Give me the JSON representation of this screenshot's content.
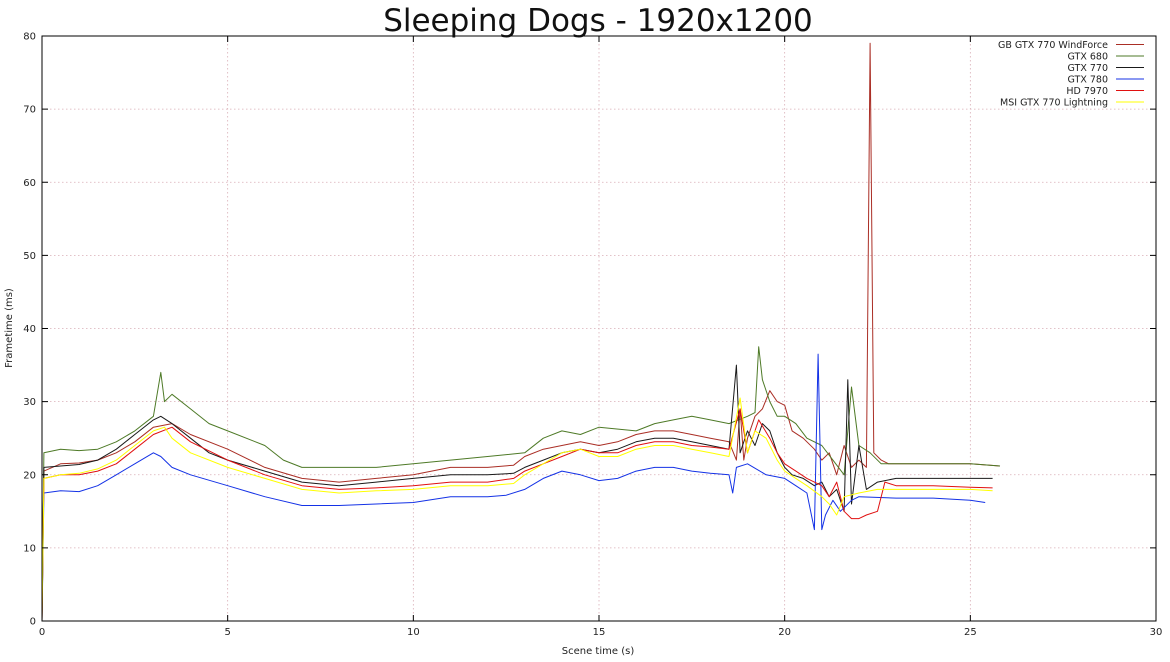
{
  "chart_data": {
    "type": "line",
    "title": "Sleeping Dogs - 1920x1200",
    "xlabel": "Scene time (s)",
    "ylabel": "Frametime (ms)",
    "xlim": [
      0,
      30
    ],
    "ylim": [
      0,
      80
    ],
    "x_ticks": [
      0,
      5,
      10,
      15,
      20,
      25,
      30
    ],
    "y_ticks": [
      0,
      10,
      20,
      30,
      40,
      50,
      60,
      70,
      80
    ],
    "grid": true,
    "legend_position": "top-right",
    "series": [
      {
        "name": "GB GTX 770 WindForce",
        "color": "#aa2e25",
        "points": [
          [
            0,
            0
          ],
          [
            0.05,
            20.5
          ],
          [
            0.5,
            21.5
          ],
          [
            1,
            21.6
          ],
          [
            1.5,
            22
          ],
          [
            2,
            23
          ],
          [
            2.5,
            24.5
          ],
          [
            3,
            26.5
          ],
          [
            3.5,
            27
          ],
          [
            4,
            25.5
          ],
          [
            5,
            23.5
          ],
          [
            6,
            21
          ],
          [
            7,
            19.5
          ],
          [
            8,
            19
          ],
          [
            9,
            19.5
          ],
          [
            10,
            20
          ],
          [
            11,
            21
          ],
          [
            12,
            21
          ],
          [
            12.7,
            21.3
          ],
          [
            13,
            22.5
          ],
          [
            13.5,
            23.5
          ],
          [
            14,
            24
          ],
          [
            14.5,
            24.5
          ],
          [
            15,
            24
          ],
          [
            15.5,
            24.5
          ],
          [
            16,
            25.5
          ],
          [
            16.5,
            26
          ],
          [
            17,
            26
          ],
          [
            17.5,
            25.5
          ],
          [
            18,
            25
          ],
          [
            18.5,
            24.5
          ],
          [
            18.7,
            22
          ],
          [
            18.8,
            29
          ],
          [
            18.9,
            22
          ],
          [
            19,
            25
          ],
          [
            19.2,
            28
          ],
          [
            19.4,
            29
          ],
          [
            19.6,
            31.5
          ],
          [
            19.8,
            30
          ],
          [
            20,
            29.5
          ],
          [
            20.2,
            26
          ],
          [
            20.5,
            25
          ],
          [
            20.8,
            23.5
          ],
          [
            21,
            22
          ],
          [
            21.2,
            23
          ],
          [
            21.4,
            20
          ],
          [
            21.6,
            24
          ],
          [
            21.8,
            21
          ],
          [
            22,
            22
          ],
          [
            22.2,
            21
          ],
          [
            22.3,
            79
          ],
          [
            22.4,
            23
          ],
          [
            22.6,
            22
          ],
          [
            22.8,
            21.5
          ],
          [
            23,
            21.5
          ],
          [
            24,
            21.5
          ],
          [
            25,
            21.5
          ],
          [
            25.8,
            21.2
          ]
        ]
      },
      {
        "name": "GTX 680",
        "color": "#4e7a27",
        "points": [
          [
            0,
            1
          ],
          [
            0.05,
            23
          ],
          [
            0.5,
            23.5
          ],
          [
            1,
            23.3
          ],
          [
            1.5,
            23.5
          ],
          [
            2,
            24.5
          ],
          [
            2.5,
            26
          ],
          [
            3,
            28
          ],
          [
            3.2,
            34
          ],
          [
            3.3,
            30
          ],
          [
            3.5,
            31
          ],
          [
            4,
            29
          ],
          [
            4.5,
            27
          ],
          [
            5,
            26
          ],
          [
            6,
            24
          ],
          [
            6.5,
            22
          ],
          [
            7,
            21
          ],
          [
            8,
            21
          ],
          [
            9,
            21
          ],
          [
            10,
            21.5
          ],
          [
            11,
            22
          ],
          [
            12,
            22.5
          ],
          [
            13,
            23
          ],
          [
            13.5,
            25
          ],
          [
            14,
            26
          ],
          [
            14.5,
            25.5
          ],
          [
            15,
            26.5
          ],
          [
            16,
            26
          ],
          [
            16.5,
            27
          ],
          [
            17,
            27.5
          ],
          [
            17.5,
            28
          ],
          [
            18,
            27.5
          ],
          [
            18.5,
            27
          ],
          [
            19,
            28
          ],
          [
            19.2,
            28.5
          ],
          [
            19.3,
            37.5
          ],
          [
            19.4,
            33
          ],
          [
            19.6,
            30
          ],
          [
            19.8,
            28
          ],
          [
            20,
            28
          ],
          [
            20.3,
            27
          ],
          [
            20.6,
            25
          ],
          [
            21,
            24
          ],
          [
            21.3,
            22
          ],
          [
            21.6,
            20
          ],
          [
            21.8,
            32
          ],
          [
            22,
            24
          ],
          [
            22.3,
            23
          ],
          [
            22.6,
            21.5
          ],
          [
            23,
            21.5
          ],
          [
            24,
            21.5
          ],
          [
            25,
            21.5
          ],
          [
            25.8,
            21.2
          ]
        ]
      },
      {
        "name": "GTX 770",
        "color": "#1a1a1a",
        "points": [
          [
            0,
            0
          ],
          [
            0.05,
            21
          ],
          [
            0.5,
            21.2
          ],
          [
            1,
            21.4
          ],
          [
            1.5,
            22
          ],
          [
            2,
            23.5
          ],
          [
            2.5,
            25.5
          ],
          [
            3,
            27.5
          ],
          [
            3.2,
            28
          ],
          [
            3.5,
            27
          ],
          [
            4,
            25
          ],
          [
            4.5,
            23
          ],
          [
            5,
            22
          ],
          [
            6,
            20.5
          ],
          [
            7,
            19
          ],
          [
            8,
            18.5
          ],
          [
            9,
            19
          ],
          [
            10,
            19.5
          ],
          [
            11,
            20
          ],
          [
            12,
            20
          ],
          [
            12.7,
            20.2
          ],
          [
            13,
            21
          ],
          [
            13.5,
            22
          ],
          [
            14,
            23
          ],
          [
            14.5,
            23.5
          ],
          [
            15,
            23
          ],
          [
            15.5,
            23.5
          ],
          [
            16,
            24.5
          ],
          [
            16.5,
            25
          ],
          [
            17,
            25
          ],
          [
            17.5,
            24.5
          ],
          [
            18,
            24
          ],
          [
            18.5,
            23.5
          ],
          [
            18.7,
            35
          ],
          [
            18.8,
            23
          ],
          [
            19,
            26
          ],
          [
            19.2,
            24
          ],
          [
            19.4,
            27
          ],
          [
            19.6,
            26
          ],
          [
            19.8,
            23
          ],
          [
            20,
            21
          ],
          [
            20.2,
            20
          ],
          [
            20.5,
            19.5
          ],
          [
            20.8,
            18.5
          ],
          [
            21,
            19
          ],
          [
            21.2,
            17
          ],
          [
            21.4,
            18
          ],
          [
            21.6,
            15
          ],
          [
            21.7,
            33
          ],
          [
            21.8,
            16
          ],
          [
            22,
            24
          ],
          [
            22.2,
            18
          ],
          [
            22.5,
            19
          ],
          [
            23,
            19.5
          ],
          [
            24,
            19.5
          ],
          [
            25,
            19.5
          ],
          [
            25.6,
            19.5
          ]
        ]
      },
      {
        "name": "GTX 780",
        "color": "#1432e6",
        "points": [
          [
            0,
            0
          ],
          [
            0.05,
            17.5
          ],
          [
            0.5,
            17.8
          ],
          [
            1,
            17.7
          ],
          [
            1.5,
            18.5
          ],
          [
            2,
            20
          ],
          [
            2.5,
            21.5
          ],
          [
            3,
            23
          ],
          [
            3.2,
            22.5
          ],
          [
            3.5,
            21
          ],
          [
            4,
            20
          ],
          [
            5,
            18.5
          ],
          [
            6,
            17
          ],
          [
            7,
            15.8
          ],
          [
            8,
            15.8
          ],
          [
            9,
            16
          ],
          [
            10,
            16.2
          ],
          [
            11,
            17
          ],
          [
            12,
            17
          ],
          [
            12.5,
            17.2
          ],
          [
            13,
            18
          ],
          [
            13.5,
            19.5
          ],
          [
            14,
            20.5
          ],
          [
            14.5,
            20
          ],
          [
            15,
            19.2
          ],
          [
            15.5,
            19.5
          ],
          [
            16,
            20.5
          ],
          [
            16.5,
            21
          ],
          [
            17,
            21
          ],
          [
            17.5,
            20.5
          ],
          [
            18,
            20.2
          ],
          [
            18.5,
            20
          ],
          [
            18.6,
            17.5
          ],
          [
            18.7,
            21
          ],
          [
            19,
            21.5
          ],
          [
            19.5,
            20
          ],
          [
            20,
            19.5
          ],
          [
            20.3,
            18.5
          ],
          [
            20.6,
            17.5
          ],
          [
            20.8,
            12.5
          ],
          [
            20.9,
            36.5
          ],
          [
            21,
            12.5
          ],
          [
            21.1,
            14.5
          ],
          [
            21.3,
            16.5
          ],
          [
            21.5,
            15
          ],
          [
            21.8,
            16.5
          ],
          [
            22,
            17
          ],
          [
            23,
            16.8
          ],
          [
            24,
            16.8
          ],
          [
            25,
            16.5
          ],
          [
            25.4,
            16.2
          ]
        ]
      },
      {
        "name": "HD 7970",
        "color": "#e01010",
        "points": [
          [
            0,
            0
          ],
          [
            0.05,
            19.5
          ],
          [
            0.5,
            20
          ],
          [
            1,
            20
          ],
          [
            1.5,
            20.5
          ],
          [
            2,
            21.5
          ],
          [
            2.5,
            23.5
          ],
          [
            3,
            25.5
          ],
          [
            3.5,
            26.5
          ],
          [
            4,
            24.5
          ],
          [
            5,
            22
          ],
          [
            6,
            20
          ],
          [
            7,
            18.5
          ],
          [
            8,
            18
          ],
          [
            9,
            18.2
          ],
          [
            10,
            18.5
          ],
          [
            11,
            19
          ],
          [
            12,
            19
          ],
          [
            12.7,
            19.5
          ],
          [
            13,
            20.5
          ],
          [
            13.5,
            21.5
          ],
          [
            14,
            22.5
          ],
          [
            14.5,
            23.5
          ],
          [
            15,
            23
          ],
          [
            15.5,
            23
          ],
          [
            16,
            24
          ],
          [
            16.5,
            24.5
          ],
          [
            17,
            24.5
          ],
          [
            17.5,
            24
          ],
          [
            18,
            23.8
          ],
          [
            18.5,
            23.5
          ],
          [
            18.8,
            29
          ],
          [
            19,
            23
          ],
          [
            19.3,
            27.5
          ],
          [
            19.6,
            25
          ],
          [
            19.8,
            23
          ],
          [
            20,
            21.5
          ],
          [
            20.3,
            20.5
          ],
          [
            20.6,
            19.5
          ],
          [
            21,
            18.5
          ],
          [
            21.2,
            17
          ],
          [
            21.4,
            19
          ],
          [
            21.6,
            15
          ],
          [
            21.8,
            14
          ],
          [
            22,
            14
          ],
          [
            22.2,
            14.5
          ],
          [
            22.5,
            15
          ],
          [
            22.7,
            19
          ],
          [
            23,
            18.5
          ],
          [
            24,
            18.5
          ],
          [
            25,
            18.3
          ],
          [
            25.6,
            18.2
          ]
        ]
      },
      {
        "name": "MSI GTX 770 Lightning",
        "color": "#ffff00",
        "points": [
          [
            0,
            0
          ],
          [
            0.05,
            19.5
          ],
          [
            0.5,
            20
          ],
          [
            1,
            20.2
          ],
          [
            1.5,
            20.8
          ],
          [
            2,
            22
          ],
          [
            2.5,
            24
          ],
          [
            3,
            26
          ],
          [
            3.3,
            26.5
          ],
          [
            3.5,
            25
          ],
          [
            4,
            23
          ],
          [
            5,
            21
          ],
          [
            6,
            19.5
          ],
          [
            7,
            18
          ],
          [
            8,
            17.5
          ],
          [
            9,
            17.8
          ],
          [
            10,
            18
          ],
          [
            11,
            18.5
          ],
          [
            12,
            18.5
          ],
          [
            12.7,
            18.8
          ],
          [
            13,
            20
          ],
          [
            13.5,
            21.5
          ],
          [
            14,
            23
          ],
          [
            14.5,
            23.5
          ],
          [
            15,
            22.5
          ],
          [
            15.5,
            22.5
          ],
          [
            16,
            23.5
          ],
          [
            16.5,
            24
          ],
          [
            17,
            24
          ],
          [
            17.5,
            23.5
          ],
          [
            18,
            23
          ],
          [
            18.5,
            22.5
          ],
          [
            18.8,
            30.5
          ],
          [
            19,
            23
          ],
          [
            19.2,
            26
          ],
          [
            19.5,
            25
          ],
          [
            19.8,
            22
          ],
          [
            20,
            20.5
          ],
          [
            20.3,
            19.5
          ],
          [
            20.6,
            18.5
          ],
          [
            21,
            17
          ],
          [
            21.2,
            16
          ],
          [
            21.4,
            14.5
          ],
          [
            21.6,
            17
          ],
          [
            22,
            17.5
          ],
          [
            22.5,
            18
          ],
          [
            23,
            18
          ],
          [
            24,
            18
          ],
          [
            25,
            18
          ],
          [
            25.6,
            17.8
          ]
        ]
      }
    ]
  }
}
